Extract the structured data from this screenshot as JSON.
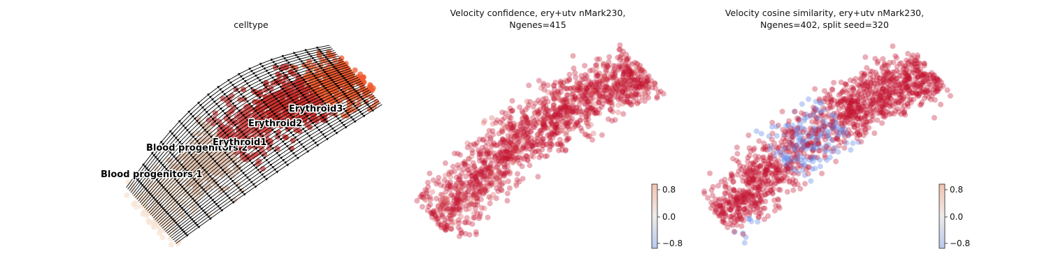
{
  "chart_data": [
    {
      "type": "scatter",
      "title": "celltype",
      "overlay": "velocity streamlines",
      "cluster_labels": [
        "Blood progenitors 1",
        "Blood progenitors 2",
        "Erythroid1",
        "Erythroid2",
        "Erythroid3"
      ],
      "colors": {
        "Blood progenitors 1": "#f7e4d6",
        "Blood progenitors 2": "#e2c3b0",
        "Erythroid1": "#d44a4a",
        "Erythroid2": "#c9302c",
        "Erythroid3": "#f0592e"
      },
      "stream_color": "#000000"
    },
    {
      "type": "scatter",
      "title_line1": "Velocity confidence, ery+utv nMark230,",
      "title_line2": "Ngenes=415",
      "colormap": "coolwarm",
      "colorbar_ticks": [
        "0.8",
        "0.0",
        "−0.8"
      ],
      "colorbar_range": [
        -0.9,
        0.9
      ],
      "dominant_color": "#c41432"
    },
    {
      "type": "scatter",
      "title_line1": "Velocity cosine similarity, ery+utv nMark230,",
      "title_line2": "Ngenes=402, split seed=320",
      "colormap": "coolwarm",
      "colorbar_ticks": [
        "0.8",
        "0.0",
        "−0.8"
      ],
      "colorbar_range": [
        -0.9,
        0.9
      ],
      "dominant_color": "#c41432",
      "minority_color": "#6a8ee8"
    }
  ]
}
